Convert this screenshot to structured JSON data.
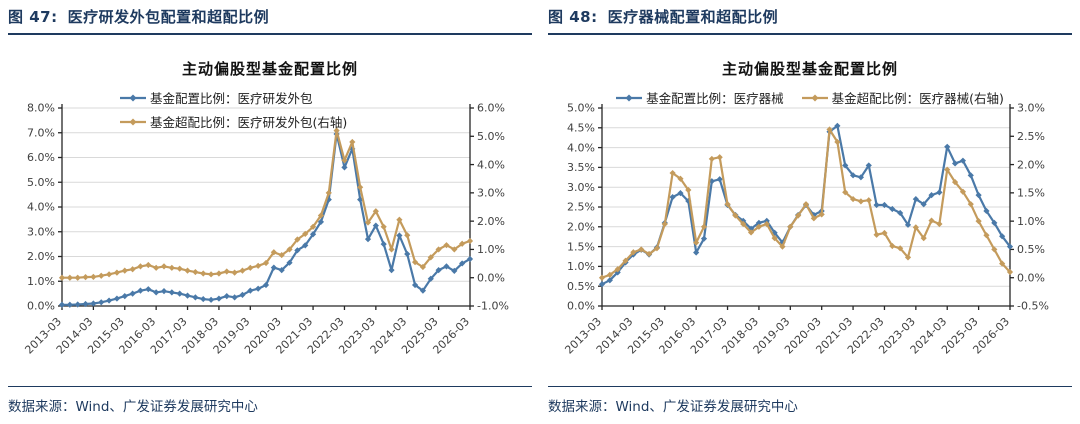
{
  "chart_data": [
    {
      "type": "line",
      "figure_label": "图 47:",
      "figure_title": "医疗研发外包配置和超配比例",
      "title": "主动偏股型基金配置比例",
      "source": "数据来源：Wind、广发证券发展研究中心",
      "legend_layout": "stacked",
      "grid": true,
      "x_tick_every": 4,
      "left_axis": {
        "min": 0.0,
        "max": 8.0,
        "step": 1.0,
        "unit": "%"
      },
      "right_axis": {
        "min": -1.0,
        "max": 6.0,
        "step": 1.0,
        "unit": "%"
      },
      "x": [
        "2013-03",
        "2013-06",
        "2013-09",
        "2013-12",
        "2014-03",
        "2014-06",
        "2014-09",
        "2014-12",
        "2015-03",
        "2015-06",
        "2015-09",
        "2015-12",
        "2016-03",
        "2016-06",
        "2016-09",
        "2016-12",
        "2017-03",
        "2017-06",
        "2017-09",
        "2017-12",
        "2018-03",
        "2018-06",
        "2018-09",
        "2018-12",
        "2019-03",
        "2019-06",
        "2019-09",
        "2019-12",
        "2020-03",
        "2020-06",
        "2020-09",
        "2020-12",
        "2021-03",
        "2021-06",
        "2021-09",
        "2021-12",
        "2022-03",
        "2022-06",
        "2022-09",
        "2022-12",
        "2023-03",
        "2023-06",
        "2023-09",
        "2023-12",
        "2024-03",
        "2024-06",
        "2024-09",
        "2024-12",
        "2025-03",
        "2025-06",
        "2025-09",
        "2025-12",
        "2026-03"
      ],
      "series": [
        {
          "name": "基金配置比例：医疗研发外包",
          "axis": "left",
          "color": "#4a79a8",
          "marker": "diamond",
          "values": [
            0.05,
            0.05,
            0.06,
            0.08,
            0.1,
            0.15,
            0.22,
            0.3,
            0.4,
            0.5,
            0.62,
            0.68,
            0.55,
            0.6,
            0.55,
            0.5,
            0.42,
            0.35,
            0.28,
            0.25,
            0.3,
            0.4,
            0.35,
            0.45,
            0.62,
            0.7,
            0.85,
            1.55,
            1.45,
            1.75,
            2.25,
            2.45,
            2.9,
            3.4,
            4.3,
            6.95,
            5.6,
            6.35,
            4.3,
            2.7,
            3.25,
            2.5,
            1.45,
            2.85,
            2.1,
            0.85,
            0.62,
            1.1,
            1.45,
            1.6,
            1.42,
            1.72,
            1.9
          ]
        },
        {
          "name": "基金超配比例：医疗研发外包(右轴)",
          "axis": "right",
          "color": "#c49b5c",
          "marker": "diamond",
          "values": [
            0.0,
            0.0,
            0.0,
            0.02,
            0.03,
            0.07,
            0.12,
            0.18,
            0.25,
            0.3,
            0.4,
            0.45,
            0.35,
            0.4,
            0.35,
            0.32,
            0.25,
            0.2,
            0.15,
            0.12,
            0.15,
            0.22,
            0.18,
            0.25,
            0.35,
            0.42,
            0.52,
            0.9,
            0.8,
            1.0,
            1.35,
            1.55,
            1.8,
            2.2,
            3.0,
            5.2,
            4.15,
            4.8,
            3.2,
            1.95,
            2.35,
            1.8,
            1.0,
            2.05,
            1.5,
            0.55,
            0.38,
            0.72,
            1.0,
            1.15,
            1.0,
            1.2,
            1.3
          ]
        }
      ]
    },
    {
      "type": "line",
      "figure_label": "图 48:",
      "figure_title": "医疗器械配置和超配比例",
      "title": "主动偏股型基金配置比例",
      "source": "数据来源：Wind、广发证券发展研究中心",
      "legend_layout": "row",
      "grid": true,
      "x_tick_every": 4,
      "left_axis": {
        "min": 0.0,
        "max": 5.0,
        "step": 0.5,
        "unit": "%"
      },
      "right_axis": {
        "min": -0.5,
        "max": 3.0,
        "step": 0.5,
        "unit": "%"
      },
      "x": [
        "2013-03",
        "2013-06",
        "2013-09",
        "2013-12",
        "2014-03",
        "2014-06",
        "2014-09",
        "2014-12",
        "2015-03",
        "2015-06",
        "2015-09",
        "2015-12",
        "2016-03",
        "2016-06",
        "2016-09",
        "2016-12",
        "2017-03",
        "2017-06",
        "2017-09",
        "2017-12",
        "2018-03",
        "2018-06",
        "2018-09",
        "2018-12",
        "2019-03",
        "2019-06",
        "2019-09",
        "2019-12",
        "2020-03",
        "2020-06",
        "2020-09",
        "2020-12",
        "2021-03",
        "2021-06",
        "2021-09",
        "2021-12",
        "2022-03",
        "2022-06",
        "2022-09",
        "2022-12",
        "2023-03",
        "2023-06",
        "2023-09",
        "2023-12",
        "2024-03",
        "2024-06",
        "2024-09",
        "2024-12",
        "2025-03",
        "2025-06",
        "2025-09",
        "2025-12",
        "2026-03"
      ],
      "series": [
        {
          "name": "基金配置比例：医疗器械",
          "axis": "left",
          "color": "#4a79a8",
          "marker": "diamond",
          "values": [
            0.55,
            0.65,
            0.85,
            1.1,
            1.3,
            1.42,
            1.3,
            1.48,
            2.1,
            2.75,
            2.85,
            2.65,
            1.35,
            1.7,
            3.15,
            3.2,
            2.55,
            2.3,
            2.15,
            1.95,
            2.1,
            2.15,
            1.85,
            1.6,
            2.0,
            2.3,
            2.55,
            2.3,
            2.4,
            4.4,
            4.55,
            3.55,
            3.3,
            3.25,
            3.55,
            2.55,
            2.55,
            2.45,
            2.35,
            2.05,
            2.7,
            2.57,
            2.8,
            2.87,
            4.02,
            3.6,
            3.67,
            3.3,
            2.8,
            2.4,
            2.1,
            1.76,
            1.5
          ]
        },
        {
          "name": "基金超配比例：医疗器械(右轴)",
          "axis": "right",
          "color": "#c49b5c",
          "marker": "diamond",
          "values": [
            0.0,
            0.05,
            0.15,
            0.3,
            0.45,
            0.5,
            0.42,
            0.52,
            0.95,
            1.85,
            1.75,
            1.55,
            0.62,
            0.9,
            2.1,
            2.13,
            1.3,
            1.1,
            0.95,
            0.8,
            0.9,
            0.95,
            0.7,
            0.55,
            0.9,
            1.1,
            1.3,
            1.05,
            1.12,
            2.62,
            2.4,
            1.51,
            1.39,
            1.35,
            1.37,
            0.76,
            0.79,
            0.56,
            0.52,
            0.36,
            0.89,
            0.7,
            1.01,
            0.95,
            1.91,
            1.69,
            1.52,
            1.3,
            1.0,
            0.75,
            0.5,
            0.25,
            0.1
          ]
        }
      ]
    }
  ],
  "style": {
    "navy": "#1e3a5f",
    "grid_color": "#d9d9d9",
    "axis_color": "#262626",
    "tick_label_color": "#404040"
  }
}
